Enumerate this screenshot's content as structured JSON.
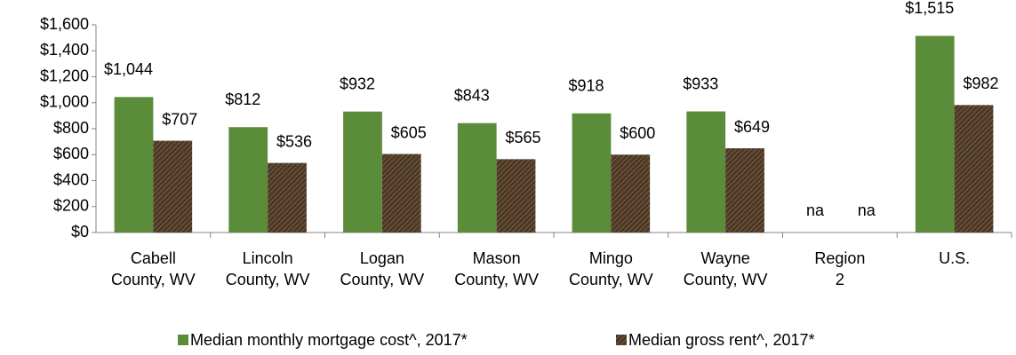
{
  "chart_data": {
    "type": "bar",
    "categories": [
      "Cabell County, WV",
      "Lincoln County, WV",
      "Logan County, WV",
      "Mason County, WV",
      "Mingo County, WV",
      "Wayne County, WV",
      "Region 2",
      "U.S."
    ],
    "series": [
      {
        "name": "Median monthly mortgage cost^, 2017*",
        "color": "#5b8c3a",
        "values": [
          1044,
          812,
          932,
          843,
          918,
          933,
          null,
          1515
        ],
        "value_labels": [
          "$1,044",
          "$812",
          "$932",
          "$843",
          "$918",
          "$933",
          "na",
          "$1,515"
        ]
      },
      {
        "name": "Median gross rent^, 2017*",
        "color": "#4a3726",
        "values": [
          707,
          536,
          605,
          565,
          600,
          649,
          null,
          982
        ],
        "value_labels": [
          "$707",
          "$536",
          "$605",
          "$565",
          "$600",
          "$649",
          "na",
          "$982"
        ]
      }
    ],
    "ylim": [
      0,
      1600
    ],
    "yticks": [
      {
        "value": 0,
        "label": "$0"
      },
      {
        "value": 200,
        "label": "$200"
      },
      {
        "value": 400,
        "label": "$400"
      },
      {
        "value": 600,
        "label": "$600"
      },
      {
        "value": 800,
        "label": "$800"
      },
      {
        "value": 1000,
        "label": "$1,000"
      },
      {
        "value": 1200,
        "label": "$1,200"
      },
      {
        "value": 1400,
        "label": "$1,400"
      },
      {
        "value": 1600,
        "label": "$1,600"
      }
    ],
    "legend": "bottom"
  }
}
